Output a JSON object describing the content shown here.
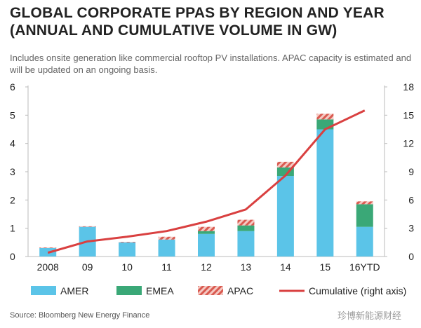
{
  "title_line1": "GLOBAL CORPORATE PPAS BY REGION AND YEAR",
  "title_line2": "(ANNUAL AND CUMULATIVE VOLUME IN GW)",
  "subtitle": "Includes onsite generation like commercial rooftop PV installations. APAC capacity is estimated and will be updated on an ongoing basis.",
  "source": "Source:  Bloomberg New Energy Finance",
  "watermark": "珍博新能源财经",
  "colors": {
    "amer": "#5bc4e8",
    "emea": "#3aa877",
    "apac_a": "#f2b8b0",
    "apac_b": "#d94848",
    "cumulative": "#d94040",
    "axis": "#bbbbbb"
  },
  "chart_data": {
    "type": "bar",
    "categories": [
      "2008",
      "09",
      "10",
      "11",
      "12",
      "13",
      "14",
      "15",
      "16YTD"
    ],
    "series": [
      {
        "name": "AMER",
        "values": [
          0.3,
          1.05,
          0.5,
          0.6,
          0.8,
          0.9,
          2.85,
          4.5,
          1.05
        ]
      },
      {
        "name": "EMEA",
        "values": [
          0,
          0,
          0,
          0,
          0.1,
          0.2,
          0.3,
          0.35,
          0.8
        ]
      },
      {
        "name": "APAC",
        "values": [
          0.02,
          0.02,
          0.02,
          0.1,
          0.15,
          0.2,
          0.2,
          0.2,
          0.1
        ]
      }
    ],
    "line": {
      "name": "Cumulative (right axis)",
      "values": [
        0.4,
        1.6,
        2.1,
        2.7,
        3.7,
        5.0,
        8.6,
        13.5,
        15.5
      ]
    },
    "ylim": [
      0,
      6
    ],
    "yticks": [
      0,
      1,
      2,
      3,
      4,
      5,
      6
    ],
    "y2lim": [
      0,
      18
    ],
    "y2ticks": [
      0,
      3,
      6,
      9,
      12,
      15,
      18
    ],
    "legend": [
      "AMER",
      "EMEA",
      "APAC",
      "Cumulative (right axis)"
    ],
    "legend_position": "bottom"
  }
}
